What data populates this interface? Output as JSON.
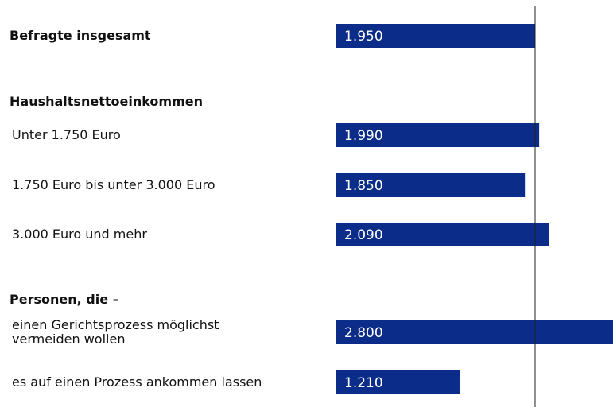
{
  "chart_data": {
    "type": "bar",
    "color": "#0b2c88",
    "groups": [
      {
        "title": "Befragte insgesamt",
        "value": 1950,
        "value_label": "1.950"
      },
      {
        "title": "Haushaltsnettoeinkommen",
        "categories": [
          "Unter 1.750 Euro",
          "1.750 Euro bis unter 3.000 Euro",
          "3.000 Euro und mehr"
        ],
        "values": [
          1990,
          1850,
          2090
        ],
        "value_labels": [
          "1.990",
          "1.850",
          "2.090"
        ]
      },
      {
        "title": "Personen, die –",
        "categories": [
          "einen Gerichtsprozess möglichst vermeiden wollen",
          "es auf einen Prozess ankommen lassen"
        ],
        "values": [
          2800,
          1210
        ],
        "value_labels": [
          "2.800",
          "1.210"
        ]
      }
    ]
  }
}
